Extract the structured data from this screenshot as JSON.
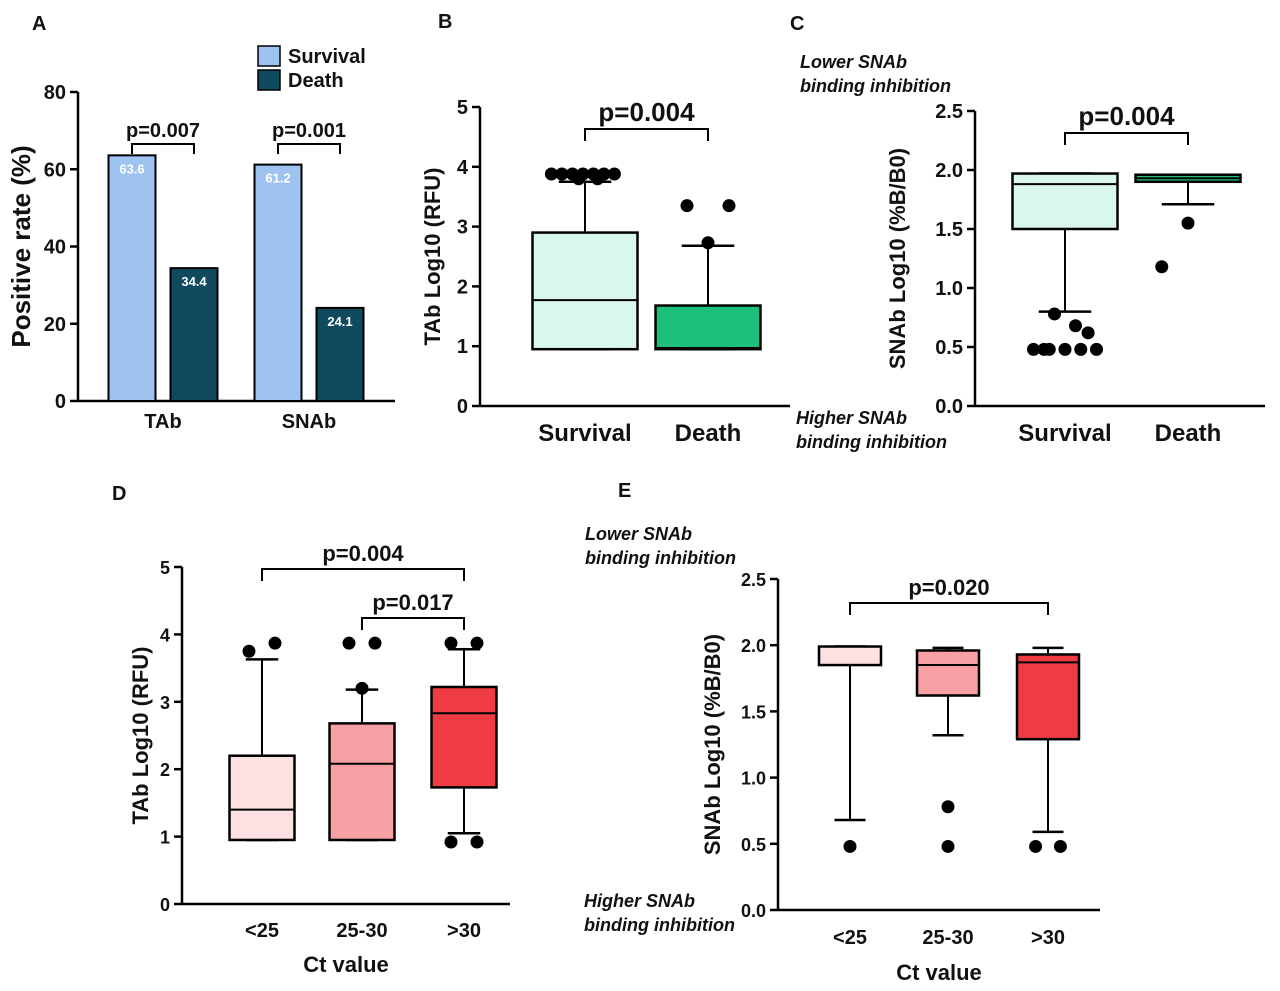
{
  "chart_data": [
    {
      "id": "A",
      "panel_label": "A",
      "type": "bar",
      "categories": [
        "TAb",
        "SNAb"
      ],
      "series": [
        {
          "name": "Survival",
          "values": [
            63.6,
            61.2
          ],
          "color": "#9ec3f0"
        },
        {
          "name": "Death",
          "values": [
            34.4,
            24.1
          ],
          "color": "#0f4a5e"
        }
      ],
      "ylabel": "Positive rate (%)",
      "ylim": [
        0,
        80
      ],
      "yticks": [
        0,
        20,
        40,
        60,
        80
      ],
      "legend": "top-right",
      "brackets": [
        {
          "category": "TAb",
          "text": "p=0.007"
        },
        {
          "category": "SNAb",
          "text": "p=0.001"
        }
      ]
    },
    {
      "id": "B",
      "panel_label": "B",
      "type": "box",
      "categories": [
        "Survival",
        "Death"
      ],
      "ylabel": "TAb Log10 (RFU)",
      "ylim": [
        0,
        5
      ],
      "yticks": [
        0,
        1,
        2,
        3,
        4,
        5
      ],
      "boxes": [
        {
          "category": "Survival",
          "whisker_low": 0.95,
          "q1": 0.95,
          "median": 1.77,
          "q3": 2.9,
          "whisker_high": 3.75,
          "color": "#d9f7ec",
          "outliers": [
            [
              -0.32,
              3.88
            ],
            [
              -0.22,
              3.88
            ],
            [
              -0.12,
              3.88
            ],
            [
              -0.02,
              3.88
            ],
            [
              0.08,
              3.88
            ],
            [
              0.18,
              3.88
            ],
            [
              0.28,
              3.88
            ],
            [
              -0.06,
              3.8
            ],
            [
              0.12,
              3.8
            ]
          ]
        },
        {
          "category": "Death",
          "whisker_low": 0.95,
          "q1": 0.95,
          "median": 0.97,
          "q3": 1.68,
          "whisker_high": 2.68,
          "color": "#1dbf7b",
          "outliers": [
            [
              -0.2,
              3.35
            ],
            [
              0.2,
              3.35
            ],
            [
              0.0,
              2.73
            ]
          ]
        }
      ],
      "brackets": [
        {
          "from": 0,
          "to": 1,
          "text": "p=0.004"
        }
      ]
    },
    {
      "id": "C",
      "panel_label": "C",
      "type": "box",
      "categories": [
        "Survival",
        "Death"
      ],
      "ylabel": "SNAb Log10 (%B/B0)",
      "ylim": [
        0,
        2.5
      ],
      "yticks": [
        "0.0",
        "0.5",
        "1.0",
        "1.5",
        "2.0",
        "2.5"
      ],
      "boxes": [
        {
          "category": "Survival",
          "whisker_low": 0.8,
          "q1": 1.5,
          "median": 1.88,
          "q3": 1.97,
          "whisker_high": 1.97,
          "color": "#d9f7ec",
          "outliers": [
            [
              -0.3,
              0.48
            ],
            [
              -0.15,
              0.48
            ],
            [
              0.0,
              0.48
            ],
            [
              0.15,
              0.48
            ],
            [
              0.3,
              0.48
            ],
            [
              -0.1,
              0.78
            ],
            [
              0.1,
              0.68
            ],
            [
              0.22,
              0.62
            ],
            [
              -0.2,
              0.48
            ]
          ]
        },
        {
          "category": "Death",
          "whisker_low": 1.71,
          "q1": 1.9,
          "median": 1.93,
          "q3": 1.96,
          "whisker_high": 1.96,
          "color": "#1dbf7b",
          "outliers": [
            [
              0.0,
              1.55
            ],
            [
              -0.25,
              1.18
            ]
          ]
        }
      ],
      "brackets": [
        {
          "from": 0,
          "to": 1,
          "text": "p=0.004"
        }
      ],
      "annotation_top": [
        "Lower SNAb",
        "binding inhibition"
      ],
      "annotation_bottom": [
        "Higher SNAb",
        "binding inhibition"
      ]
    },
    {
      "id": "D",
      "panel_label": "D",
      "type": "box",
      "categories": [
        "<25",
        "25-30",
        ">30"
      ],
      "xlabel": "Ct value",
      "ylabel": "TAb Log10 (RFU)",
      "ylim": [
        0,
        5
      ],
      "yticks": [
        0,
        1,
        2,
        3,
        4,
        5
      ],
      "boxes": [
        {
          "category": "<25",
          "whisker_low": 0.95,
          "q1": 0.95,
          "median": 1.4,
          "q3": 2.2,
          "whisker_high": 3.63,
          "color": "#fde0e2",
          "outliers": [
            [
              -0.2,
              3.75
            ],
            [
              0.2,
              3.87
            ]
          ]
        },
        {
          "category": "25-30",
          "whisker_low": 0.95,
          "q1": 0.95,
          "median": 2.08,
          "q3": 2.68,
          "whisker_high": 3.18,
          "color": "#f6a0a4",
          "outliers": [
            [
              -0.2,
              3.87
            ],
            [
              0.2,
              3.87
            ],
            [
              0.0,
              3.2
            ]
          ]
        },
        {
          "category": ">30",
          "whisker_low": 1.05,
          "q1": 1.73,
          "median": 2.83,
          "q3": 3.22,
          "whisker_high": 3.78,
          "color": "#ee3c42",
          "outliers": [
            [
              -0.2,
              3.87
            ],
            [
              0.2,
              3.87
            ],
            [
              -0.2,
              0.92
            ],
            [
              0.2,
              0.92
            ]
          ]
        }
      ],
      "brackets": [
        {
          "from": 0,
          "to": 2,
          "text": "p=0.004"
        },
        {
          "from": 1,
          "to": 2,
          "text": "p=0.017"
        }
      ]
    },
    {
      "id": "E",
      "panel_label": "E",
      "type": "box",
      "categories": [
        "<25",
        "25-30",
        ">30"
      ],
      "xlabel": "Ct value",
      "ylabel": "SNAb Log10 (%B/B0)",
      "ylim": [
        0,
        2.5
      ],
      "yticks": [
        "0.0",
        "0.5",
        "1.0",
        "1.5",
        "2.0",
        "2.5"
      ],
      "boxes": [
        {
          "category": "<25",
          "whisker_low": 0.68,
          "q1": 1.85,
          "median": 1.85,
          "q3": 1.99,
          "whisker_high": 1.99,
          "color": "#fde0e2",
          "outliers": [
            [
              0.0,
              0.48
            ]
          ]
        },
        {
          "category": "25-30",
          "whisker_low": 1.32,
          "q1": 1.62,
          "median": 1.85,
          "q3": 1.96,
          "whisker_high": 1.98,
          "color": "#f6a0a4",
          "outliers": [
            [
              0.0,
              0.78
            ],
            [
              0.0,
              0.48
            ]
          ]
        },
        {
          "category": ">30",
          "whisker_low": 0.59,
          "q1": 1.29,
          "median": 1.87,
          "q3": 1.93,
          "whisker_high": 1.98,
          "color": "#ee3c42",
          "outliers": [
            [
              -0.2,
              0.48
            ],
            [
              0.2,
              0.48
            ]
          ]
        }
      ],
      "brackets": [
        {
          "from": 0,
          "to": 2,
          "text": "p=0.020"
        }
      ],
      "annotation_top": [
        "Lower SNAb",
        "binding inhibition"
      ],
      "annotation_bottom": [
        "Higher SNAb",
        "binding inhibition"
      ]
    }
  ]
}
